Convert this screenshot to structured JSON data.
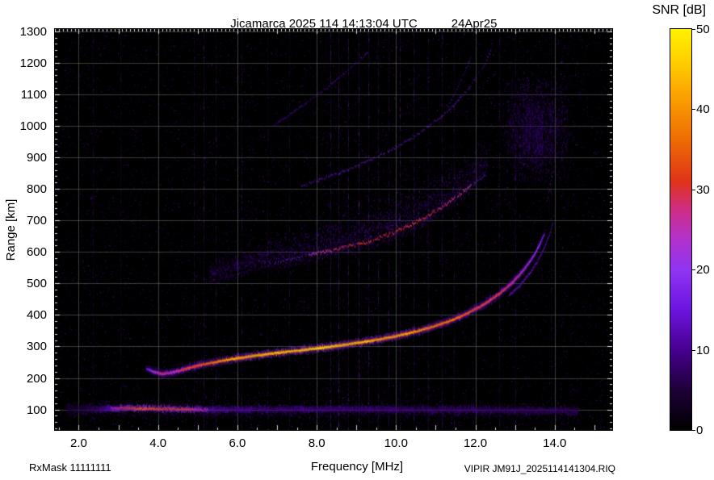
{
  "header": {
    "title": "Jicamarca 2025 114 14:13:04 UTC",
    "date": "24Apr25",
    "colorbar_title": "SNR [dB]"
  },
  "footer": {
    "rx_mask": "RxMask 11111111",
    "xlabel": "Frequency [MHz]",
    "file_label": "VIPIR JM91J_2025114141304.RIQ"
  },
  "axes": {
    "ylabel": "Range [km]",
    "y_ticks": [
      100,
      200,
      300,
      400,
      500,
      600,
      700,
      800,
      900,
      1000,
      1100,
      1200,
      1300
    ],
    "x_ticks": [
      {
        "label": "2.0",
        "value": 2
      },
      {
        "label": "4.0",
        "value": 4
      },
      {
        "label": "6.0",
        "value": 6
      },
      {
        "label": "8.0",
        "value": 8
      },
      {
        "label": "10.0",
        "value": 10
      },
      {
        "label": "12.0",
        "value": 12
      },
      {
        "label": "14.0",
        "value": 14
      }
    ],
    "x_grid": [
      2,
      4,
      6,
      8,
      10,
      12,
      14
    ]
  },
  "colorbar": {
    "min": 0,
    "max": 50,
    "ticks": [
      0,
      10,
      20,
      30,
      40,
      50
    ]
  },
  "chart_data": {
    "type": "heatmap",
    "title": "Jicamarca 2025 114 14:13:04 UTC 24Apr25",
    "xlabel": "Frequency [MHz]",
    "ylabel": "Range [km]",
    "zlabel": "SNR [dB]",
    "xlim": [
      1.4,
      15.45
    ],
    "ylim": [
      35,
      1307
    ],
    "zlim": [
      0,
      50
    ],
    "grid": true,
    "background": "#000000",
    "colormap_stops": [
      {
        "t": 0.0,
        "c": "#000000"
      },
      {
        "t": 0.1,
        "c": "#1e0038"
      },
      {
        "t": 0.2,
        "c": "#47008f"
      },
      {
        "t": 0.3,
        "c": "#6d14e0"
      },
      {
        "t": 0.4,
        "c": "#8f35f2"
      },
      {
        "t": 0.48,
        "c": "#b332c8"
      },
      {
        "t": 0.55,
        "c": "#cf2d85"
      },
      {
        "t": 0.62,
        "c": "#e03318"
      },
      {
        "t": 0.72,
        "c": "#ee6a04"
      },
      {
        "t": 0.82,
        "c": "#f99b02"
      },
      {
        "t": 0.92,
        "c": "#ffcf00"
      },
      {
        "t": 1.0,
        "c": "#fff200"
      }
    ],
    "series": [
      {
        "name": "high-multiple streak (left)",
        "style": "faint",
        "points": [
          [
            6.9,
            1000,
            6
          ],
          [
            7.6,
            1060,
            6
          ],
          [
            8.3,
            1125,
            6
          ],
          [
            8.9,
            1190,
            6
          ],
          [
            9.3,
            1235,
            6
          ]
        ]
      },
      {
        "name": "4th-hop streak",
        "style": "faint",
        "points": [
          [
            11.3,
            1060,
            7
          ],
          [
            11.5,
            1110,
            7
          ],
          [
            11.7,
            1165,
            7
          ],
          [
            11.9,
            1225,
            7
          ]
        ]
      },
      {
        "name": "3rd-hop F echo",
        "style": "faint",
        "points": [
          [
            7.6,
            810,
            8
          ],
          [
            8.2,
            835,
            9
          ],
          [
            8.8,
            862,
            10
          ],
          [
            9.4,
            895,
            10
          ],
          [
            10.0,
            932,
            10
          ],
          [
            10.6,
            978,
            10
          ],
          [
            11.1,
            1025,
            10
          ],
          [
            11.5,
            1072,
            9
          ],
          [
            11.9,
            1130,
            9
          ],
          [
            12.2,
            1190,
            8
          ],
          [
            12.4,
            1240,
            8
          ]
        ]
      },
      {
        "name": "2nd-hop spread near foF2",
        "style": "cloud",
        "region": {
          "f0": 12.55,
          "f1": 14.45,
          "r0": 810,
          "r1": 1165
        },
        "count": 2800,
        "snr": 12
      },
      {
        "name": "2nd-hop asymptote",
        "style": "faint",
        "points": [
          [
            13.8,
            760,
            11
          ],
          [
            13.95,
            850,
            11
          ],
          [
            14.05,
            950,
            10
          ],
          [
            14.1,
            1050,
            10
          ],
          [
            14.15,
            1160,
            9
          ],
          [
            14.2,
            1250,
            9
          ]
        ]
      },
      {
        "name": "2nd-hop F echo",
        "style": "diffuse",
        "points": [
          [
            5.3,
            515,
            10
          ],
          [
            5.8,
            532,
            12
          ],
          [
            6.3,
            548,
            14
          ],
          [
            6.8,
            562,
            16
          ],
          [
            7.3,
            576,
            18
          ],
          [
            7.8,
            590,
            20
          ],
          [
            8.3,
            604,
            23
          ],
          [
            8.8,
            618,
            26
          ],
          [
            9.3,
            634,
            27
          ],
          [
            9.8,
            655,
            27
          ],
          [
            10.3,
            682,
            26
          ],
          [
            10.8,
            715,
            25
          ],
          [
            11.3,
            755,
            24
          ],
          [
            11.7,
            792,
            22
          ],
          [
            12.0,
            822,
            19
          ],
          [
            12.3,
            852,
            15
          ]
        ]
      },
      {
        "name": "E-region band",
        "style": "band",
        "points": [
          [
            1.7,
            101,
            6
          ],
          [
            2.2,
            101,
            9
          ],
          [
            2.5,
            102,
            14
          ],
          [
            2.8,
            103,
            24
          ],
          [
            3.1,
            104,
            30
          ],
          [
            3.5,
            104,
            33
          ],
          [
            3.9,
            103,
            34
          ],
          [
            4.3,
            102,
            32
          ],
          [
            4.7,
            101,
            30
          ],
          [
            5.1,
            100,
            26
          ],
          [
            5.5,
            100,
            21
          ],
          [
            6.0,
            100,
            18
          ],
          [
            6.6,
            100,
            17
          ],
          [
            7.2,
            100,
            17
          ],
          [
            8.0,
            100,
            16
          ],
          [
            8.6,
            101,
            16
          ],
          [
            9.2,
            101,
            15
          ],
          [
            10.0,
            100,
            15
          ],
          [
            10.8,
            100,
            14
          ],
          [
            11.6,
            99,
            14
          ],
          [
            12.4,
            98,
            13
          ],
          [
            13.2,
            97,
            12
          ],
          [
            14.0,
            96,
            12
          ],
          [
            14.6,
            95,
            10
          ]
        ]
      },
      {
        "name": "F-region 1st hop (X-mode)",
        "style": "thin",
        "points": [
          [
            12.85,
            462,
            17
          ],
          [
            13.1,
            492,
            17
          ],
          [
            13.35,
            530,
            17
          ],
          [
            13.55,
            568,
            16
          ],
          [
            13.72,
            610,
            15
          ],
          [
            13.86,
            655,
            14
          ],
          [
            13.97,
            700,
            12
          ]
        ]
      },
      {
        "name": "F-region 1st hop (O-mode)",
        "style": "sharp",
        "points": [
          [
            3.7,
            230,
            15
          ],
          [
            3.9,
            219,
            24
          ],
          [
            4.1,
            213,
            30
          ],
          [
            4.35,
            218,
            25
          ],
          [
            4.6,
            226,
            30
          ],
          [
            5.0,
            240,
            36
          ],
          [
            5.5,
            252,
            41
          ],
          [
            6.0,
            263,
            44
          ],
          [
            6.5,
            272,
            46
          ],
          [
            7.0,
            280,
            46
          ],
          [
            7.5,
            287,
            47
          ],
          [
            8.0,
            294,
            48
          ],
          [
            8.5,
            302,
            47
          ],
          [
            9.0,
            311,
            45
          ],
          [
            9.5,
            321,
            44
          ],
          [
            10.0,
            333,
            43
          ],
          [
            10.5,
            348,
            42
          ],
          [
            11.0,
            366,
            40
          ],
          [
            11.4,
            384,
            38
          ],
          [
            11.8,
            406,
            36
          ],
          [
            12.2,
            433,
            34
          ],
          [
            12.6,
            467,
            31
          ],
          [
            12.9,
            500,
            29
          ],
          [
            13.2,
            541,
            26
          ],
          [
            13.45,
            585,
            23
          ],
          [
            13.62,
            625,
            20
          ],
          [
            13.75,
            662,
            17
          ]
        ]
      }
    ],
    "rfi_lines": [
      {
        "f": 2.35,
        "a": 0.05
      },
      {
        "f": 3.05,
        "a": 0.05
      },
      {
        "f": 4.9,
        "a": 0.06
      },
      {
        "f": 5.15,
        "a": 0.09
      },
      {
        "f": 5.45,
        "a": 0.07
      },
      {
        "f": 6.1,
        "a": 0.06
      },
      {
        "f": 6.75,
        "a": 0.05
      },
      {
        "f": 7.3,
        "a": 0.06
      },
      {
        "f": 8.35,
        "a": 0.1
      },
      {
        "f": 8.55,
        "a": 0.12
      },
      {
        "f": 8.8,
        "a": 0.09
      },
      {
        "f": 9.05,
        "a": 0.12
      },
      {
        "f": 9.3,
        "a": 0.1
      },
      {
        "f": 9.55,
        "a": 0.08
      },
      {
        "f": 9.8,
        "a": 0.07
      },
      {
        "f": 10.1,
        "a": 0.1
      },
      {
        "f": 10.45,
        "a": 0.08
      },
      {
        "f": 10.8,
        "a": 0.07
      },
      {
        "f": 11.15,
        "a": 0.08
      },
      {
        "f": 11.45,
        "a": 0.06
      },
      {
        "f": 12.6,
        "a": 0.07
      },
      {
        "f": 13.0,
        "a": 0.06
      },
      {
        "f": 13.9,
        "a": 0.05
      }
    ],
    "noise": {
      "seed": 20250424,
      "speckle_count": 26000
    }
  }
}
